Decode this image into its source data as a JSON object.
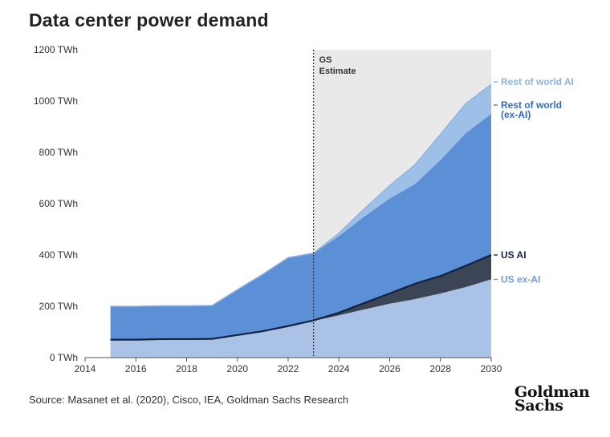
{
  "title": "Data center power demand",
  "source": "Source: Masanet et al. (2020), Cisco, IEA, Goldman Sachs Research",
  "logo": {
    "line1": "Goldman",
    "line2": "Sachs"
  },
  "colors": {
    "us_ex_ai": "#a9c2e6",
    "us_ai": "#3b4556",
    "row_ex_ai": "#5b90d6",
    "row_ai": "#9dbfe8",
    "estimate_bg": "#e9e9e9",
    "us_ai_line": "#14213d"
  },
  "chart_data": {
    "type": "area",
    "stacked": true,
    "title": "Data center power demand",
    "xlabel": "",
    "ylabel": "",
    "xlim": [
      2014,
      2030
    ],
    "ylim": [
      0,
      1200
    ],
    "x_ticks": [
      "2014",
      "2016",
      "2018",
      "2020",
      "2022",
      "2024",
      "2026",
      "2028",
      "2030"
    ],
    "x_tick_values": [
      2014,
      2016,
      2018,
      2020,
      2022,
      2024,
      2026,
      2028,
      2030
    ],
    "y_ticks": [
      "0 TWh",
      "200 TWh",
      "400 TWh",
      "600 TWh",
      "800 TWh",
      "1000 TWh",
      "1200 TWh"
    ],
    "y_tick_values": [
      0,
      200,
      400,
      600,
      800,
      1000,
      1200
    ],
    "x": [
      2015,
      2016,
      2017,
      2018,
      2019,
      2020,
      2021,
      2022,
      2023,
      2024,
      2025,
      2026,
      2027,
      2028,
      2029,
      2030
    ],
    "estimate_start": 2023,
    "estimate_label": [
      "GS",
      "Estimate"
    ],
    "series": [
      {
        "name": "US ex-AI",
        "label": "US ex-AI",
        "values": [
          70,
          70,
          72,
          72,
          73,
          88,
          103,
          123,
          143,
          165,
          188,
          210,
          228,
          250,
          275,
          305
        ]
      },
      {
        "name": "US AI",
        "label": "US AI",
        "values": [
          0,
          0,
          0,
          0,
          0,
          0,
          0,
          0,
          2,
          10,
          25,
          40,
          60,
          68,
          83,
          95
        ]
      },
      {
        "name": "Rest of world (ex-AI)",
        "label": [
          "Rest of world",
          "(ex-AI)"
        ],
        "values": [
          130,
          130,
          130,
          130,
          130,
          177,
          222,
          267,
          262,
          299,
          337,
          370,
          389,
          452,
          517,
          550
        ]
      },
      {
        "name": "Rest of world AI",
        "label": "Rest of world AI",
        "values": [
          0,
          0,
          0,
          0,
          0,
          0,
          0,
          0,
          0,
          11,
          30,
          50,
          75,
          100,
          115,
          115
        ]
      }
    ],
    "totals": {
      "us_ai_top": [
        70,
        70,
        72,
        72,
        73,
        88,
        103,
        123,
        145,
        175,
        213,
        250,
        288,
        318,
        358,
        400
      ],
      "grand_total": [
        200,
        200,
        202,
        202,
        203,
        265,
        325,
        390,
        407,
        485,
        580,
        670,
        752,
        870,
        990,
        1065
      ]
    }
  }
}
